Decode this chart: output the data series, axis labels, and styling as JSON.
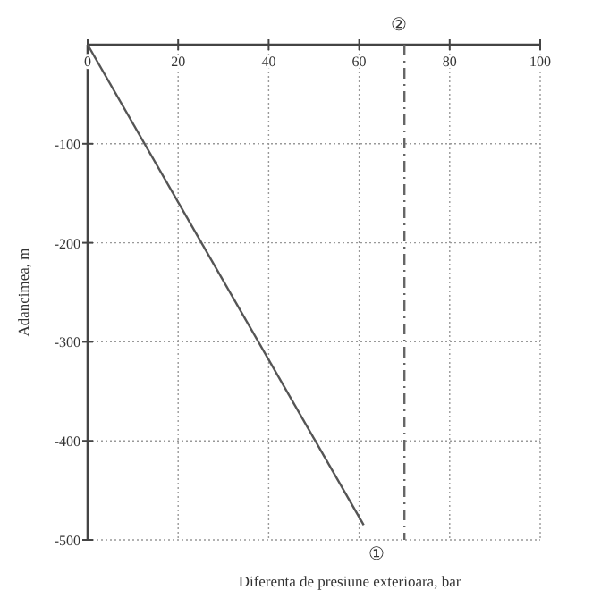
{
  "chart_data": {
    "type": "line",
    "xlabel": "Diferenta de presiune exterioara, bar",
    "ylabel": "Adancimea, m",
    "x": [
      0,
      61
    ],
    "series": [
      {
        "color": "#555555",
        "values": [
          0,
          -485
        ]
      }
    ],
    "xlim": [
      0,
      100
    ],
    "xticks": [
      0,
      20,
      40,
      60,
      80,
      100
    ],
    "ylim": [
      -500,
      0
    ],
    "yticks": [
      -100,
      -200,
      -300,
      -400,
      -500
    ],
    "grid": true,
    "marker": "none",
    "line_style": "solid",
    "ref_lines": [
      {
        "axis": "x",
        "value": 70,
        "color": "#666666",
        "line_style": "dashdot"
      }
    ],
    "annotations": [
      "①",
      "②"
    ]
  }
}
